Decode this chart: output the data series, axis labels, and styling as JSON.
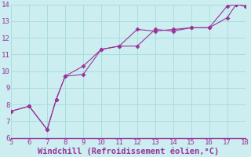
{
  "xlabel": "Windchill (Refroidissement éolien,°C)",
  "x_line1": [
    5,
    6,
    7,
    7.5,
    8,
    9,
    10,
    11,
    12,
    13,
    14,
    15,
    16,
    17,
    17.5,
    18
  ],
  "y_line1": [
    7.6,
    7.9,
    6.5,
    8.3,
    9.7,
    9.8,
    11.3,
    11.5,
    12.5,
    12.4,
    12.5,
    12.6,
    12.6,
    13.9,
    14.0,
    13.9
  ],
  "x_line2": [
    5,
    6,
    7,
    7.5,
    8,
    9,
    10,
    11,
    12,
    13,
    14,
    15,
    16,
    17,
    17.5,
    18
  ],
  "y_line2": [
    7.6,
    7.9,
    6.5,
    8.3,
    9.7,
    10.3,
    11.3,
    11.5,
    11.5,
    12.5,
    12.4,
    12.6,
    12.6,
    13.2,
    14.0,
    13.9
  ],
  "line_color": "#993399",
  "marker": "D",
  "marker_size": 2.5,
  "xlim": [
    5,
    18
  ],
  "ylim": [
    6,
    14
  ],
  "xticks": [
    5,
    6,
    7,
    8,
    9,
    10,
    11,
    12,
    13,
    14,
    15,
    16,
    17,
    18
  ],
  "yticks": [
    6,
    7,
    8,
    9,
    10,
    11,
    12,
    13,
    14
  ],
  "bg_color": "#cceef0",
  "grid_color": "#aadddd",
  "tick_label_color": "#993399",
  "tick_label_size": 6.5,
  "xlabel_color": "#993399",
  "xlabel_size": 7.5,
  "xlabel_weight": "bold"
}
